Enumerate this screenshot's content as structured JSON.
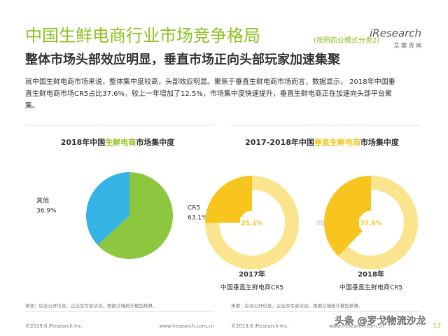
{
  "header": {
    "title": "中国生鲜电商行业市场竞争格局",
    "title_note": "(按照商业模式分类2)",
    "subtitle": "整体市场头部效应明显，垂直市场正向头部玩家加速集聚",
    "logo": "iResearch",
    "logo_cn": "艾 瑞 咨 询"
  },
  "body": {
    "lines": [
      "就中国生鲜电商市场来说，整体集中度较高，头部效应明显。聚焦于垂直生鲜电商市场而言，数据显示， 2018年中国垂",
      "直生鲜电商市场CR5占比37.6%，较上一年增加了12.5%，市场集中度快速提升，垂直生鲜电商正在加速向头部平台聚",
      "集。"
    ]
  },
  "right_panel": {
    "title_parts": [
      "2017-2018年中国",
      "垂直生鲜电商",
      "市场集中度"
    ]
  },
  "chart_data": [
    {
      "type": "pie",
      "title_parts": [
        "2018年中国",
        "生鲜电商",
        "市场集中度"
      ],
      "categories": [
        "CR5",
        "其他"
      ],
      "values": [
        63.1,
        36.9
      ],
      "value_labels": [
        "63.1%",
        "36.9%"
      ],
      "colors": [
        "#8dc63f",
        "#36b3e5"
      ]
    },
    {
      "type": "donut",
      "title": "2017年",
      "subtitle": "中国垂直生鲜电商CR5",
      "values": [
        25.1
      ],
      "value_labels": [
        "25.1%"
      ],
      "colors": [
        "#f7c51e",
        "#fbe48e"
      ]
    },
    {
      "type": "donut",
      "title": "2018年",
      "subtitle": "中国垂直生鲜电商CR5",
      "values": [
        37.6
      ],
      "value_labels": [
        "37.6%"
      ],
      "colors": [
        "#f7c51e",
        "#fbe48e"
      ]
    }
  ],
  "footer": {
    "source_left": "来源：综合公开信息，企业及专家访谈，根据艾瑞统计模型核算。",
    "source_right": "来源：综合公开信息，企业及专家访谈，根据艾瑞统计模型核算。",
    "copyright_left": "©2019.6 iResearch Inc.",
    "url_left": "www.iresearch.com.cn",
    "copyright_right": "©2019.6 iResearch Inc.",
    "url_right": "www.iresearch.com.cn",
    "watermark": "头条 @罗戈物流沙龙",
    "page": "17"
  }
}
